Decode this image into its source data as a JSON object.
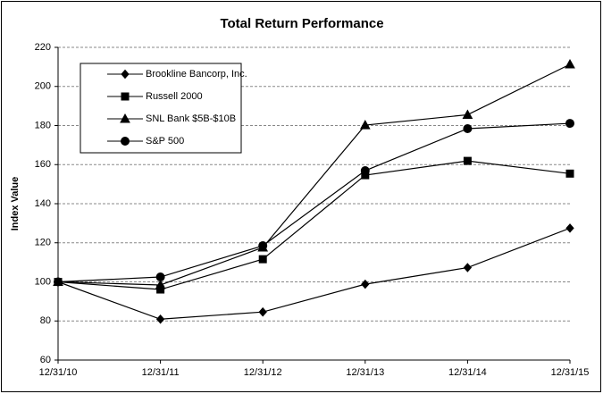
{
  "chart_data": {
    "type": "line",
    "title": "Total Return Performance",
    "ylabel": "Index Value",
    "categories": [
      "12/31/10",
      "12/31/11",
      "12/31/12",
      "12/31/13",
      "12/31/14",
      "12/31/15"
    ],
    "series": [
      {
        "name": "Brookline Bancorp, Inc.",
        "color": "#000000",
        "marker": "diamond",
        "values": [
          100,
          80.9,
          84.6,
          98.8,
          107.3,
          127.5
        ]
      },
      {
        "name": "Russell 2000",
        "color": "#000000",
        "marker": "square",
        "values": [
          100,
          96.1,
          111.6,
          154.6,
          161.9,
          155.4
        ]
      },
      {
        "name": "SNL Bank $5B-$10B",
        "color": "#000000",
        "marker": "triangle",
        "values": [
          100,
          98.4,
          117.6,
          180.2,
          185.5,
          211.3
        ]
      },
      {
        "name": "S&P 500",
        "color": "#000000",
        "marker": "circle",
        "values": [
          100,
          102.5,
          118.5,
          156.9,
          178.4,
          181.1
        ]
      }
    ],
    "ylim": [
      60,
      220
    ],
    "yticks": [
      60,
      80,
      100,
      120,
      140,
      160,
      180,
      200,
      220
    ],
    "grid": true
  }
}
